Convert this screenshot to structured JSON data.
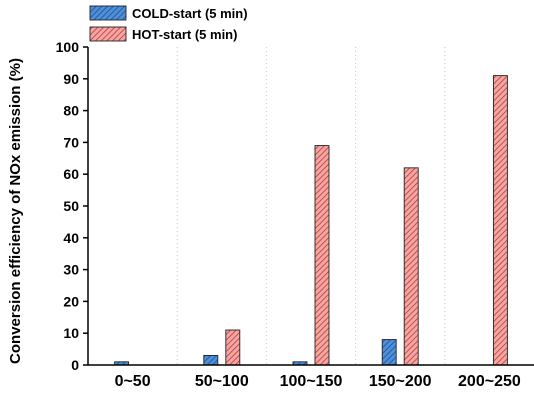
{
  "chart_data": {
    "type": "bar",
    "title": "",
    "xlabel": "",
    "ylabel": "Conversion efficiency of NOx emission (%)",
    "ylim": [
      0,
      100
    ],
    "yticks": [
      0,
      10,
      20,
      30,
      40,
      50,
      60,
      70,
      80,
      90,
      100
    ],
    "categories": [
      "0~50",
      "50~100",
      "100~150",
      "150~200",
      "200~250"
    ],
    "series": [
      {
        "name": "COLD-start (5 min)",
        "values": [
          1,
          3,
          1,
          8,
          0
        ],
        "color": "#4f8fd6",
        "hatch_color": "#1a4f9c"
      },
      {
        "name": "HOT-start (5 min)",
        "values": [
          0,
          11,
          69,
          62,
          91
        ],
        "color": "#f2a6a6",
        "hatch_color": "#c0392b"
      }
    ],
    "grid": "vertical-dotted",
    "legend_position": "top-left"
  }
}
